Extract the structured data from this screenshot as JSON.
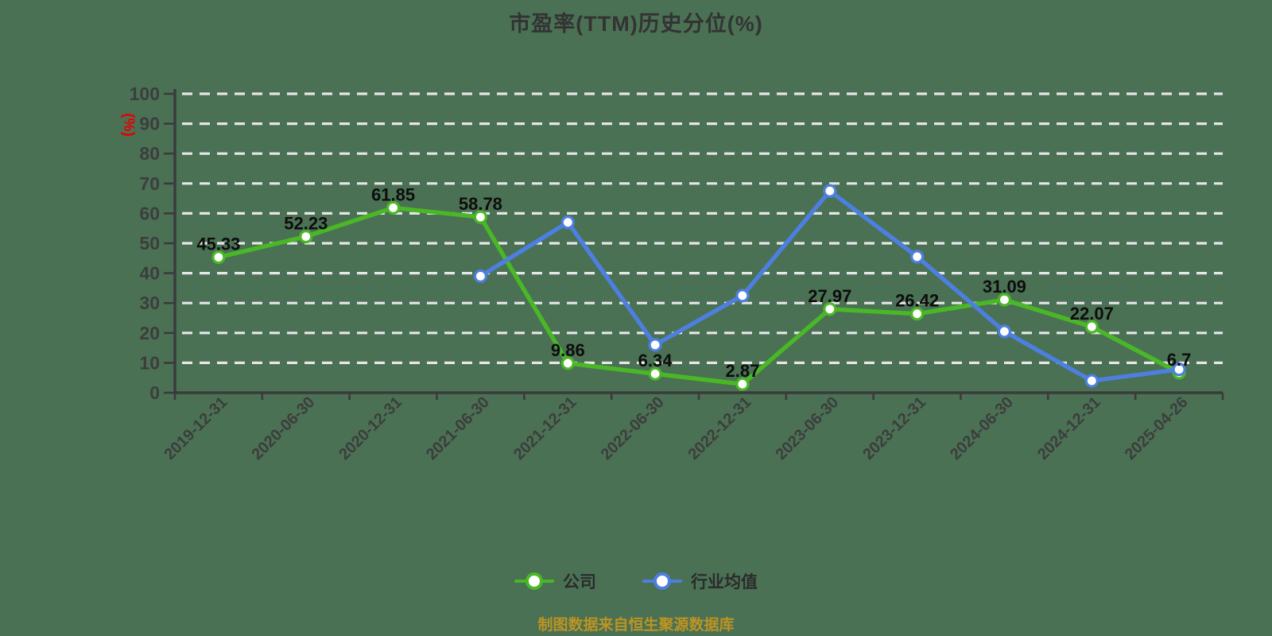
{
  "colors": {
    "background": "#4a7154",
    "title": "#333333",
    "axis": "#3b3b3b",
    "tick_label": "#3d3d3d",
    "grid": "#e6e6e6",
    "data_label": "#0d0d0d",
    "unit_label": "#e60000",
    "source_note": "#bd9422",
    "legend_text": "#2b2b2b",
    "marker_fill": "#ffffff",
    "company_green": "#4ab826",
    "industry_blue": "#4d7fe0"
  },
  "source_note": "制图数据来自恒生聚源数据库",
  "chart_data": {
    "type": "line",
    "title": "市盈率(TTM)历史分位(%)",
    "y_axis_name": "(%)",
    "xlabel": "",
    "ylabel": "(%)",
    "ylim": [
      0,
      100
    ],
    "y_ticks": [
      0,
      10,
      20,
      30,
      40,
      50,
      60,
      70,
      80,
      90,
      100
    ],
    "grid": "horizontal-dashed",
    "legend_position": "bottom",
    "categories": [
      "2019-12-31",
      "2020-06-30",
      "2020-12-31",
      "2021-06-30",
      "2021-12-31",
      "2022-06-30",
      "2022-12-31",
      "2023-06-30",
      "2023-12-31",
      "2024-06-30",
      "2024-12-31",
      "2025-04-26"
    ],
    "series": [
      {
        "key": "company",
        "name": "公司",
        "color": "#4ab826",
        "show_point_labels": true,
        "values": [
          45.33,
          52.23,
          61.85,
          58.78,
          9.86,
          6.34,
          2.87,
          27.97,
          26.42,
          31.09,
          22.07,
          6.7
        ]
      },
      {
        "key": "industry-average",
        "name": "行业均值",
        "color": "#4d7fe0",
        "show_point_labels": false,
        "values": [
          null,
          null,
          null,
          39,
          57,
          16,
          32.5,
          67.5,
          45.5,
          20.5,
          4,
          7.8
        ]
      }
    ]
  }
}
